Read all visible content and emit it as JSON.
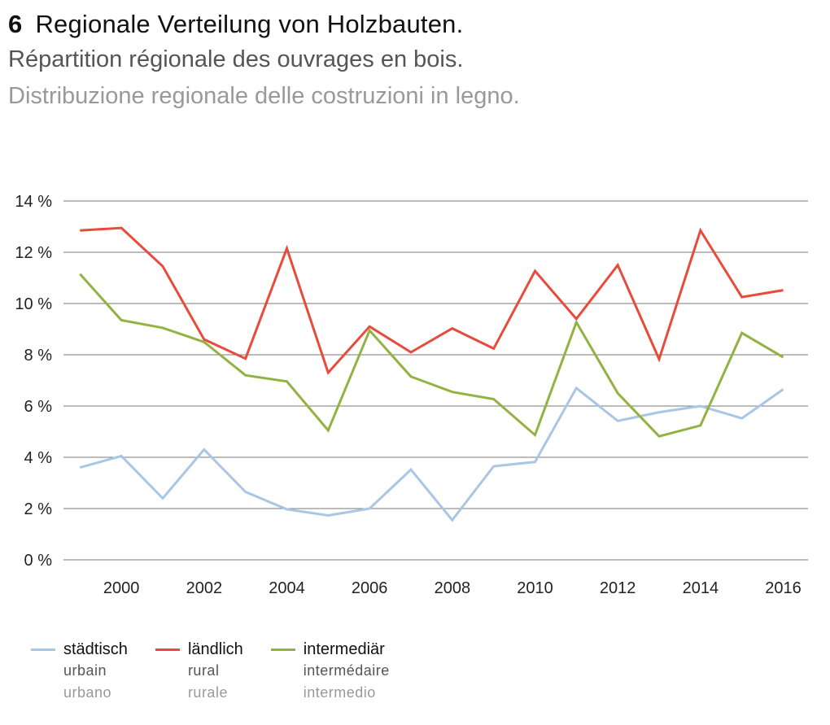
{
  "header": {
    "number": "6",
    "title_de": "Regionale Verteilung von Holzbauten.",
    "title_fr": "Répartition régionale des ouvrages en bois.",
    "title_it": "Distribuzione regionale delle costruzioni in legno."
  },
  "chart_data": {
    "type": "line",
    "title": "Regionale Verteilung von Holzbauten.",
    "xlabel": "",
    "ylabel": "",
    "x": [
      1999,
      2000,
      2001,
      2002,
      2003,
      2004,
      2005,
      2006,
      2007,
      2008,
      2009,
      2010,
      2011,
      2012,
      2013,
      2014,
      2015,
      2016
    ],
    "x_tick_labels": [
      "2000",
      "2002",
      "2004",
      "2006",
      "2008",
      "2010",
      "2012",
      "2014",
      "2016"
    ],
    "x_tick_values": [
      2000,
      2002,
      2004,
      2006,
      2008,
      2010,
      2012,
      2014,
      2016
    ],
    "y_ticks": [
      0,
      2,
      4,
      6,
      8,
      10,
      12,
      14
    ],
    "y_tick_labels": [
      "0 %",
      "2 %",
      "4 %",
      "6 %",
      "8 %",
      "10 %",
      "12 %",
      "14 %"
    ],
    "ylim": [
      0,
      14
    ],
    "xlim": [
      1998.6,
      2016.6
    ],
    "grid": true,
    "legend_position": "bottom-left",
    "series": [
      {
        "key": "urban",
        "name": "städtisch",
        "name_fr": "urbain",
        "name_it": "urbano",
        "color": "#a9c6e4",
        "values": [
          3.6,
          4.05,
          2.4,
          4.3,
          2.65,
          1.97,
          1.73,
          2.0,
          3.52,
          1.55,
          3.65,
          3.82,
          6.7,
          5.42,
          5.76,
          6.0,
          5.52,
          6.65
        ]
      },
      {
        "key": "rural",
        "name": "ländlich",
        "name_fr": "rural",
        "name_it": "rurale",
        "color": "#e84b3c",
        "values": [
          12.85,
          12.95,
          11.45,
          8.6,
          7.85,
          12.15,
          7.3,
          9.1,
          8.1,
          9.03,
          8.24,
          11.27,
          9.4,
          11.5,
          7.83,
          12.85,
          10.25,
          10.52
        ]
      },
      {
        "key": "intermediate",
        "name": "intermediär",
        "name_fr": "intermédaire",
        "name_it": "intermedio",
        "color": "#92b342",
        "values": [
          11.15,
          9.35,
          9.05,
          8.5,
          7.2,
          6.96,
          5.05,
          8.95,
          7.15,
          6.55,
          6.27,
          4.87,
          9.27,
          6.5,
          4.82,
          5.24,
          8.85,
          7.9
        ]
      }
    ]
  }
}
